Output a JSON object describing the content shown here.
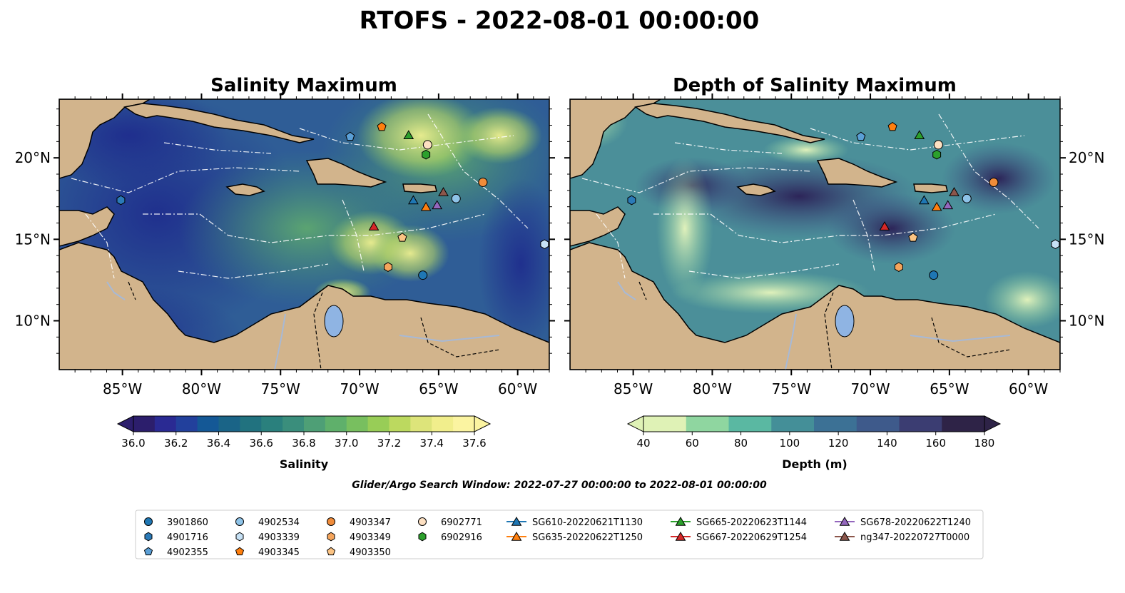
{
  "figure": {
    "title": "RTOFS - 2022-08-01 00:00:00",
    "search_window": "Glider/Argo Search Window: 2022-07-27 00:00:00 to 2022-08-01 00:00:00"
  },
  "map_extent": {
    "lon": [
      -89,
      -58
    ],
    "lat": [
      7,
      23.6
    ]
  },
  "panels": [
    {
      "id": "salinity",
      "title": "Salinity Maximum"
    },
    {
      "id": "depth",
      "title": "Depth of Salinity Maximum"
    }
  ],
  "axes": {
    "lon_ticks": [
      {
        "value": -85,
        "label": "85°W"
      },
      {
        "value": -80,
        "label": "80°W"
      },
      {
        "value": -75,
        "label": "75°W"
      },
      {
        "value": -70,
        "label": "70°W"
      },
      {
        "value": -65,
        "label": "65°W"
      },
      {
        "value": -60,
        "label": "60°W"
      }
    ],
    "lat_ticks": [
      {
        "value": 20,
        "label": "20°N"
      },
      {
        "value": 15,
        "label": "15°N"
      },
      {
        "value": 10,
        "label": "10°N"
      }
    ]
  },
  "colorbars": {
    "salinity": {
      "label": "Salinity",
      "range": [
        36.0,
        37.6
      ],
      "ticks": [
        "36.0",
        "36.2",
        "36.4",
        "36.6",
        "36.8",
        "37.0",
        "37.2",
        "37.4",
        "37.6"
      ],
      "colors": [
        "#2c1e6c",
        "#2a2a93",
        "#22409c",
        "#145896",
        "#1a6487",
        "#21727f",
        "#2a807d",
        "#3a8e7c",
        "#4e9f76",
        "#5fb06b",
        "#78bf5f",
        "#98cd57",
        "#bcd95f",
        "#dde47a",
        "#f1ee8c",
        "#fbf4a1"
      ]
    },
    "depth": {
      "label": "Depth (m)",
      "range": [
        40,
        180
      ],
      "ticks": [
        "40",
        "60",
        "80",
        "100",
        "120",
        "140",
        "160",
        "180"
      ],
      "colors": [
        "#dff2b6",
        "#8fd6a0",
        "#5ab8a2",
        "#448f98",
        "#3c7195",
        "#3e5a8b",
        "#3b3d72",
        "#2e2347"
      ]
    }
  },
  "colors": {
    "land": "#d2b48c",
    "lake": "#8fb4e3",
    "river": "#a7b9d6"
  },
  "observations": [
    {
      "id": "3901860",
      "lon": -66.0,
      "lat": 12.8,
      "marker": "circle",
      "color": "#1f77b4"
    },
    {
      "id": "4901716",
      "lon": -85.1,
      "lat": 17.4,
      "marker": "hexagon",
      "color": "#2b7ab8"
    },
    {
      "id": "4902355",
      "lon": -70.6,
      "lat": 21.3,
      "marker": "pentagon",
      "color": "#5a9fd6"
    },
    {
      "id": "4902534",
      "lon": -63.9,
      "lat": 17.5,
      "marker": "circle",
      "color": "#8ec3e8"
    },
    {
      "id": "4903339",
      "lon": -58.3,
      "lat": 14.7,
      "marker": "hexagon",
      "color": "#c6e1f5"
    },
    {
      "id": "4903345",
      "lon": -68.6,
      "lat": 21.9,
      "marker": "pentagon",
      "color": "#ff7f0e"
    },
    {
      "id": "4903347",
      "lon": -62.2,
      "lat": 18.5,
      "marker": "circle",
      "color": "#f08c3a"
    },
    {
      "id": "4903349",
      "lon": -68.2,
      "lat": 13.3,
      "marker": "hexagon",
      "color": "#f5a55c"
    },
    {
      "id": "4903350",
      "lon": -67.3,
      "lat": 15.1,
      "marker": "pentagon",
      "color": "#fbc383"
    },
    {
      "id": "6902771",
      "lon": -65.7,
      "lat": 20.8,
      "marker": "circle",
      "color": "#fde0c2"
    },
    {
      "id": "6902916",
      "lon": -65.8,
      "lat": 20.2,
      "marker": "hexagon",
      "color": "#2ca02c"
    },
    {
      "id": "SG610-20220621T1130",
      "lon": -66.6,
      "lat": 17.4,
      "marker": "triangle",
      "color": "#1f77b4",
      "line": true
    },
    {
      "id": "SG635-20220622T1250",
      "lon": -65.8,
      "lat": 17.0,
      "marker": "triangle",
      "color": "#ff7f0e",
      "line": true
    },
    {
      "id": "SG665-20220623T1144",
      "lon": -66.9,
      "lat": 21.4,
      "marker": "triangle",
      "color": "#2ca02c",
      "line": true
    },
    {
      "id": "SG667-20220629T1254",
      "lon": -69.1,
      "lat": 15.8,
      "marker": "triangle",
      "color": "#d62728",
      "line": true
    },
    {
      "id": "SG678-20220622T1240",
      "lon": -65.1,
      "lat": 17.1,
      "marker": "triangle",
      "color": "#9467bd",
      "line": true
    },
    {
      "id": "ng347-20220727T0000",
      "lon": -64.7,
      "lat": 17.9,
      "marker": "triangle",
      "color": "#8c564b",
      "line": true
    }
  ]
}
